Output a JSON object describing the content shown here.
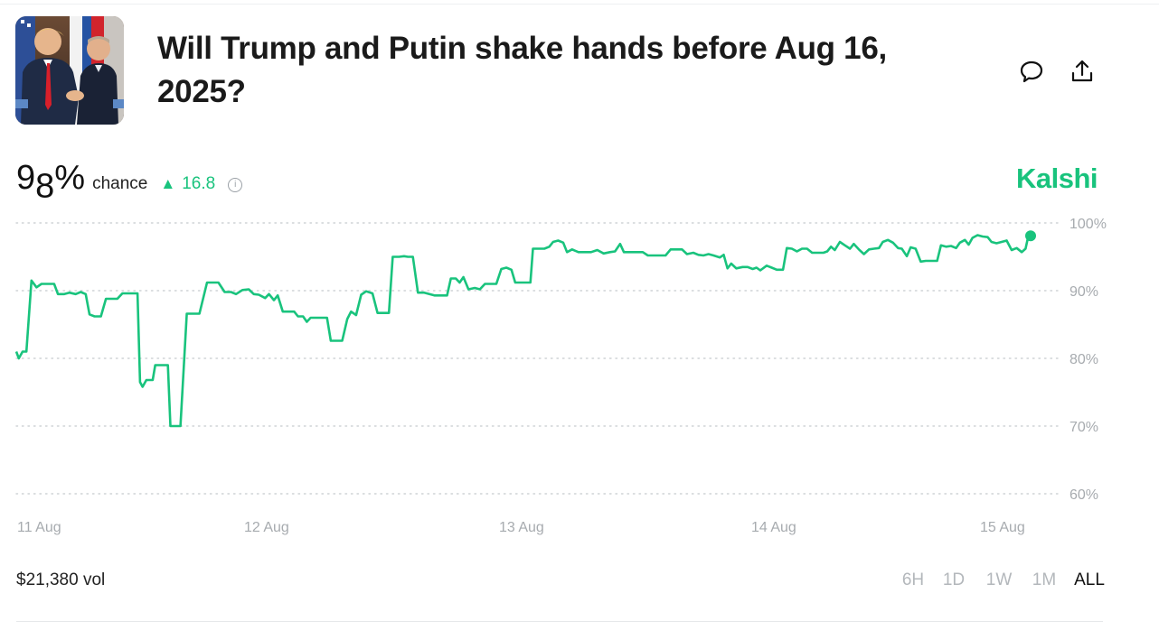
{
  "market": {
    "title": "Will Trump and Putin shake hands before Aug 16, 2025?",
    "probability": {
      "main": "9",
      "sub": "8",
      "suffix": "%",
      "label": "chance"
    },
    "change": {
      "main": "1",
      "sub": "6",
      "rest": ".8",
      "direction": "up"
    },
    "brand": "Kalshi",
    "volume": "$21,380 vol",
    "ranges": [
      {
        "label": "6H",
        "active": false
      },
      {
        "label": "1D",
        "active": false
      },
      {
        "label": "1W",
        "active": false
      },
      {
        "label": "1M",
        "active": false
      },
      {
        "label": "ALL",
        "active": true
      }
    ]
  },
  "icons": {
    "comment": "comment-bubble-icon",
    "share": "share-upload-icon",
    "info": "info-icon",
    "up": "triangle-up-icon"
  },
  "colors": {
    "accent": "#19c37d",
    "grid": "#cfd3d6",
    "axis_text": "#a7abaf"
  },
  "chart_data": {
    "type": "line",
    "x_tick_labels": [
      {
        "label": "11 Aug",
        "t": 0.0
      },
      {
        "label": "12 Aug",
        "t": 1.0
      },
      {
        "label": "13 Aug",
        "t": 2.0
      },
      {
        "label": "14 Aug",
        "t": 3.0
      },
      {
        "label": "15 Aug",
        "t": 4.0
      }
    ],
    "y_ticks": [
      "100%",
      "90%",
      "80%",
      "70%",
      "60%"
    ],
    "ylim": [
      60,
      100
    ],
    "y_tick_values": [
      100,
      90,
      80,
      70,
      60
    ],
    "grid": true,
    "series": [
      {
        "color": "#19c37d",
        "points": [
          [
            0.0,
            81
          ],
          [
            0.02,
            80
          ],
          [
            0.05,
            81
          ],
          [
            0.08,
            81
          ],
          [
            0.12,
            91.5
          ],
          [
            0.16,
            90.5
          ],
          [
            0.2,
            91
          ],
          [
            0.25,
            91
          ],
          [
            0.3,
            91
          ],
          [
            0.33,
            89.5
          ],
          [
            0.38,
            89.5
          ],
          [
            0.42,
            89.7
          ],
          [
            0.47,
            89.5
          ],
          [
            0.51,
            89.8
          ],
          [
            0.55,
            89.5
          ],
          [
            0.58,
            86.5
          ],
          [
            0.62,
            86.2
          ],
          [
            0.67,
            86.2
          ],
          [
            0.71,
            88.8
          ],
          [
            0.75,
            88.8
          ],
          [
            0.8,
            88.8
          ],
          [
            0.84,
            89.6
          ],
          [
            0.88,
            89.6
          ],
          [
            0.93,
            89.6
          ],
          [
            0.96,
            89.6
          ],
          [
            0.98,
            76.5
          ],
          [
            1.0,
            75.8
          ],
          [
            1.03,
            76.8
          ],
          [
            1.08,
            76.8
          ],
          [
            1.1,
            79
          ],
          [
            1.15,
            79
          ],
          [
            1.2,
            79
          ],
          [
            1.22,
            70
          ],
          [
            1.27,
            70
          ],
          [
            1.3,
            70
          ],
          [
            1.35,
            86.6
          ],
          [
            1.4,
            86.6
          ],
          [
            1.45,
            86.6
          ],
          [
            1.51,
            91.2
          ],
          [
            1.56,
            91.2
          ],
          [
            1.6,
            91.2
          ],
          [
            1.65,
            89.8
          ],
          [
            1.7,
            89.8
          ],
          [
            1.74,
            89.5
          ],
          [
            1.79,
            90.1
          ],
          [
            1.84,
            90.2
          ],
          [
            1.88,
            89.5
          ],
          [
            1.92,
            89.4
          ],
          [
            1.97,
            88.9
          ],
          [
            2.0,
            89.5
          ],
          [
            2.04,
            88.6
          ],
          [
            2.07,
            89.3
          ],
          [
            2.11,
            86.9
          ],
          [
            2.16,
            86.9
          ],
          [
            2.2,
            86.9
          ],
          [
            2.23,
            86.2
          ],
          [
            2.27,
            86.2
          ],
          [
            2.3,
            85.4
          ],
          [
            2.33,
            86
          ],
          [
            2.38,
            86
          ],
          [
            2.42,
            86
          ],
          [
            2.46,
            86
          ],
          [
            2.49,
            82.6
          ],
          [
            2.54,
            82.6
          ],
          [
            2.58,
            82.6
          ],
          [
            2.62,
            85.8
          ],
          [
            2.65,
            86.9
          ],
          [
            2.69,
            86.4
          ],
          [
            2.73,
            89.4
          ],
          [
            2.77,
            89.9
          ],
          [
            2.82,
            89.6
          ],
          [
            2.86,
            86.7
          ],
          [
            2.9,
            86.7
          ],
          [
            2.95,
            86.7
          ],
          [
            2.98,
            95
          ],
          [
            3.03,
            95
          ],
          [
            3.07,
            95.1
          ],
          [
            3.1,
            95
          ],
          [
            3.14,
            95
          ],
          [
            3.18,
            89.7
          ],
          [
            3.23,
            89.7
          ],
          [
            3.27,
            89.5
          ],
          [
            3.31,
            89.3
          ],
          [
            3.36,
            89.3
          ],
          [
            3.41,
            89.3
          ],
          [
            3.44,
            91.8
          ],
          [
            3.48,
            91.8
          ],
          [
            3.51,
            91.2
          ],
          [
            3.54,
            92
          ],
          [
            3.58,
            90.2
          ],
          [
            3.63,
            90.4
          ],
          [
            3.67,
            90.2
          ],
          [
            3.71,
            91
          ],
          [
            3.76,
            91
          ],
          [
            3.8,
            91
          ],
          [
            3.84,
            93.2
          ],
          [
            3.88,
            93.4
          ],
          [
            3.92,
            93.1
          ],
          [
            3.95,
            91.2
          ],
          [
            3.99,
            91.2
          ],
          [
            4.03,
            91.2
          ],
          [
            4.07,
            91.2
          ],
          [
            4.09,
            96.2
          ],
          [
            4.13,
            96.2
          ],
          [
            4.18,
            96.2
          ],
          [
            4.22,
            96.5
          ],
          [
            4.25,
            97.2
          ],
          [
            4.29,
            97.4
          ],
          [
            4.33,
            97.1
          ],
          [
            4.36,
            95.7
          ],
          [
            4.4,
            96.1
          ],
          [
            4.45,
            95.7
          ],
          [
            4.5,
            95.7
          ],
          [
            4.55,
            95.7
          ],
          [
            4.6,
            96
          ],
          [
            4.65,
            95.5
          ],
          [
            4.7,
            95.7
          ],
          [
            4.74,
            95.8
          ],
          [
            4.78,
            96.9
          ],
          [
            4.81,
            95.7
          ],
          [
            4.86,
            95.7
          ],
          [
            4.91,
            95.7
          ],
          [
            4.96,
            95.7
          ],
          [
            5.0,
            95.2
          ],
          [
            5.05,
            95.2
          ],
          [
            5.1,
            95.2
          ],
          [
            5.14,
            95.2
          ],
          [
            5.18,
            96.1
          ],
          [
            5.23,
            96.1
          ],
          [
            5.27,
            96.1
          ],
          [
            5.31,
            95.4
          ],
          [
            5.36,
            95.6
          ],
          [
            5.4,
            95.3
          ],
          [
            5.44,
            95.2
          ],
          [
            5.48,
            95.4
          ],
          [
            5.52,
            95.2
          ],
          [
            5.57,
            94.9
          ],
          [
            5.6,
            95.3
          ],
          [
            5.63,
            93.3
          ],
          [
            5.66,
            94
          ],
          [
            5.7,
            93.3
          ],
          [
            5.75,
            93.5
          ],
          [
            5.79,
            93.5
          ],
          [
            5.83,
            93.2
          ],
          [
            5.86,
            93.4
          ],
          [
            5.89,
            93
          ],
          [
            5.94,
            93.7
          ],
          [
            5.98,
            93.4
          ],
          [
            6.02,
            93.1
          ],
          [
            6.07,
            93.1
          ],
          [
            6.1,
            96.3
          ],
          [
            6.14,
            96.2
          ],
          [
            6.18,
            95.8
          ],
          [
            6.22,
            96.2
          ],
          [
            6.26,
            96.2
          ],
          [
            6.3,
            95.6
          ],
          [
            6.34,
            95.6
          ],
          [
            6.39,
            95.6
          ],
          [
            6.42,
            95.8
          ],
          [
            6.45,
            96.5
          ],
          [
            6.48,
            96
          ],
          [
            6.52,
            97.2
          ],
          [
            6.56,
            96.7
          ],
          [
            6.6,
            96.2
          ],
          [
            6.63,
            96.9
          ],
          [
            6.67,
            96.1
          ],
          [
            6.71,
            95.4
          ],
          [
            6.75,
            96.1
          ],
          [
            6.79,
            96.2
          ],
          [
            6.83,
            96.3
          ],
          [
            6.86,
            97.2
          ],
          [
            6.9,
            97.5
          ],
          [
            6.94,
            97.1
          ],
          [
            6.98,
            96.3
          ],
          [
            7.01,
            96.2
          ],
          [
            7.05,
            95.1
          ],
          [
            7.08,
            96.4
          ],
          [
            7.12,
            96.2
          ],
          [
            7.16,
            94.3
          ],
          [
            7.2,
            94.4
          ],
          [
            7.25,
            94.4
          ],
          [
            7.29,
            94.4
          ],
          [
            7.32,
            96.7
          ],
          [
            7.36,
            96.5
          ],
          [
            7.4,
            96.6
          ],
          [
            7.44,
            96.3
          ],
          [
            7.47,
            97.1
          ],
          [
            7.51,
            97.5
          ],
          [
            7.54,
            96.8
          ],
          [
            7.57,
            97.8
          ],
          [
            7.61,
            98.2
          ],
          [
            7.65,
            98
          ],
          [
            7.69,
            97.9
          ],
          [
            7.72,
            97.2
          ],
          [
            7.76,
            97
          ],
          [
            7.8,
            97.2
          ],
          [
            7.84,
            97.4
          ],
          [
            7.88,
            96
          ],
          [
            7.92,
            96.3
          ],
          [
            7.96,
            95.7
          ],
          [
            7.99,
            96.2
          ],
          [
            8.01,
            97.9
          ],
          [
            8.03,
            98.1
          ]
        ]
      }
    ]
  }
}
